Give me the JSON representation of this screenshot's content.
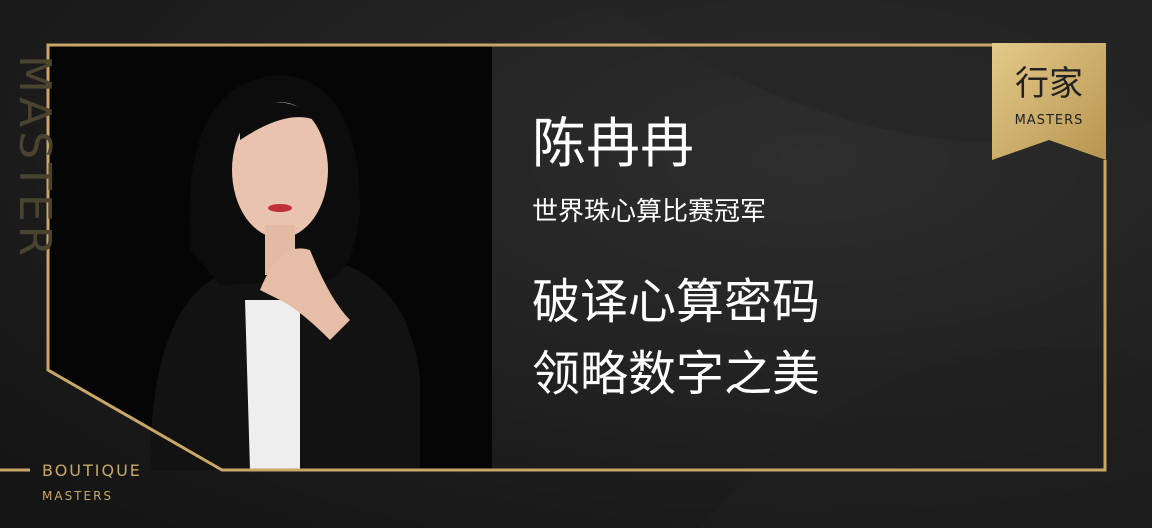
{
  "side_label": "MASTER",
  "badge": {
    "title": "行家",
    "subtitle": "MASTERS"
  },
  "person": {
    "name": "陈冉冉",
    "honor": "世界珠心算比赛冠军"
  },
  "headline": [
    "破译心算密码",
    "领略数字之美"
  ],
  "brand": {
    "line1": "BOUTIQUE",
    "line2": "MASTERS"
  }
}
